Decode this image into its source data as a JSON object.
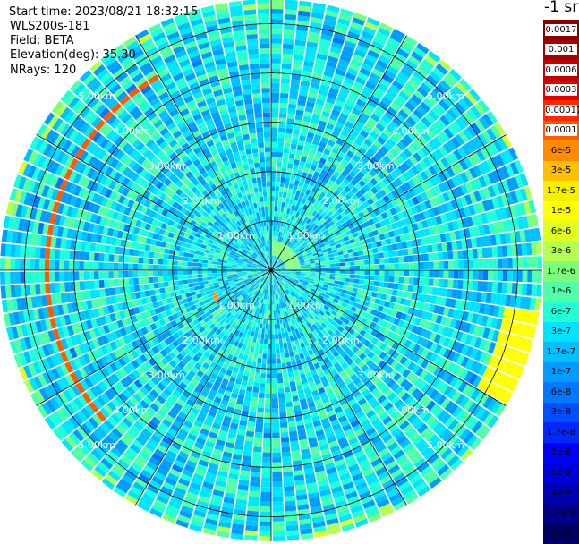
{
  "header": {
    "start_time": "Start time: 2023/08/21 18:32:15",
    "device": "WLS200s-181",
    "field": "Field: BETA",
    "elevation": "Elevation(deg): 35.30",
    "nrays": "NRays: 120"
  },
  "colorbar": {
    "title": "-1 sr",
    "labels": [
      "0.0017",
      "0.001",
      "0.0006",
      "0.0003",
      "0.00017",
      "0.0001",
      "6e-5",
      "3e-5",
      "1.7e-5",
      "1e-5",
      "6e-6",
      "3e-6",
      "1.7e-6",
      "1e-6",
      "6e-7",
      "3e-7",
      "1.7e-7",
      "1e-7",
      "6e-8",
      "3e-8",
      "1.7e-8",
      "1e-8",
      "6e-9",
      "3e-9",
      "1.7e-9",
      "1e-9"
    ],
    "colors": [
      "#8b0000",
      "#a50000",
      "#c40000",
      "#e00000",
      "#ff2600",
      "#ff5a00",
      "#ff8c00",
      "#ffc000",
      "#f5f000",
      "#ffff00",
      "#e0ff20",
      "#b4ff50",
      "#7dff7a",
      "#50ffa6",
      "#20ffd6",
      "#00e4ff",
      "#00c0ff",
      "#009cff",
      "#0078ff",
      "#0050ff",
      "#0028ff",
      "#0000ff",
      "#0000dc",
      "#0000b4",
      "#00008c",
      "#000064"
    ]
  },
  "chart_data": {
    "type": "heatmap",
    "projection": "polar PPI",
    "field": "BETA",
    "rays": 120,
    "max_range_km": 5.5,
    "range_rings_km": [
      1,
      2,
      3,
      4,
      5
    ],
    "ring_labels": [
      "1.00km",
      "2.00km",
      "3.00km",
      "4.00km",
      "5.00km"
    ],
    "background_value": 3e-07,
    "scale": "log",
    "features": [
      {
        "kind": "arc",
        "value": 0.0001,
        "range_km": [
          4.5,
          4.6
        ],
        "azimuth_deg": [
          228,
          330
        ]
      },
      {
        "kind": "arc",
        "value": 1e-05,
        "range_km": [
          4.8,
          5.5
        ],
        "azimuth_deg": [
          100,
          120
        ]
      },
      {
        "kind": "blob",
        "value": 6e-05,
        "range_km": [
          1.2,
          1.3
        ],
        "azimuth_deg": [
          240,
          250
        ]
      },
      {
        "kind": "blob",
        "value": 1.7e-06,
        "range_km": [
          0.3,
          0.6
        ],
        "azimuth_deg": [
          0,
          90
        ]
      }
    ]
  }
}
